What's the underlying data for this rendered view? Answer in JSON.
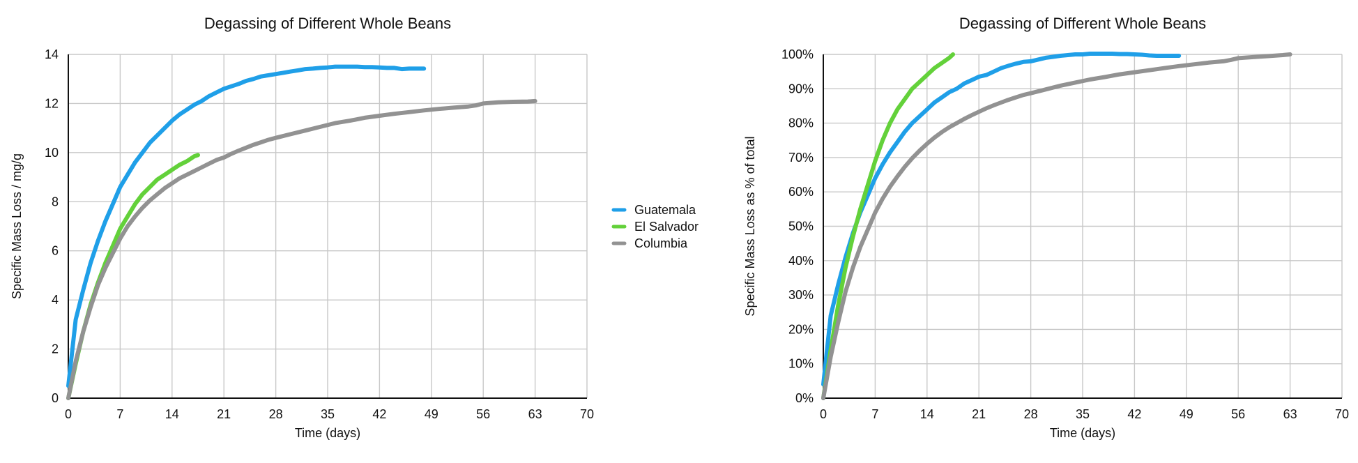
{
  "chart_data": [
    {
      "type": "line",
      "title": "Degassing of Different Whole Beans",
      "xlabel": "Time (days)",
      "ylabel": "Specific Mass Loss / mg/g",
      "xlim": [
        0,
        70
      ],
      "ylim": [
        0,
        14
      ],
      "xticks": [
        "0",
        "7",
        "14",
        "21",
        "28",
        "35",
        "42",
        "49",
        "56",
        "63",
        "70"
      ],
      "yticks": [
        "0",
        "2",
        "4",
        "6",
        "8",
        "10",
        "12",
        "14"
      ],
      "grid": true,
      "series": [
        {
          "name": "Guatemala",
          "color": "#1f9fe8",
          "x": [
            0,
            1,
            2,
            3,
            4,
            5,
            6,
            7,
            8,
            9,
            10,
            11,
            12,
            13,
            14,
            15,
            16,
            17,
            18,
            19,
            20,
            21,
            22,
            23,
            24,
            25,
            26,
            27,
            28,
            29,
            30,
            31,
            32,
            33,
            34,
            35,
            36,
            37,
            38,
            39,
            40,
            41,
            42,
            43,
            44,
            45,
            46,
            47,
            48
          ],
          "y": [
            0.5,
            3.2,
            4.4,
            5.5,
            6.4,
            7.2,
            7.9,
            8.6,
            9.1,
            9.6,
            10.0,
            10.4,
            10.7,
            11.0,
            11.3,
            11.55,
            11.75,
            11.95,
            12.1,
            12.3,
            12.45,
            12.6,
            12.7,
            12.8,
            12.92,
            13.0,
            13.1,
            13.15,
            13.2,
            13.25,
            13.3,
            13.35,
            13.4,
            13.42,
            13.45,
            13.47,
            13.5,
            13.5,
            13.5,
            13.5,
            13.48,
            13.48,
            13.47,
            13.45,
            13.45,
            13.4,
            13.42,
            13.42,
            13.42
          ]
        },
        {
          "name": "El Salvador",
          "color": "#63d13a",
          "x": [
            0,
            1,
            2,
            3,
            4,
            5,
            6,
            7,
            8,
            9,
            10,
            11,
            12,
            13,
            14,
            15,
            16,
            17,
            17.5
          ],
          "y": [
            0,
            1.4,
            2.7,
            3.8,
            4.7,
            5.5,
            6.2,
            6.9,
            7.4,
            7.9,
            8.3,
            8.6,
            8.9,
            9.1,
            9.3,
            9.5,
            9.65,
            9.85,
            9.9
          ]
        },
        {
          "name": "Columbia",
          "color": "#929292",
          "x": [
            0,
            1,
            2,
            3,
            4,
            5,
            6,
            7,
            8,
            9,
            10,
            11,
            12,
            13,
            14,
            15,
            16,
            17,
            18,
            19,
            20,
            21,
            22,
            23,
            24,
            25,
            26,
            27,
            28,
            30,
            32,
            34,
            36,
            38,
            40,
            42,
            44,
            46,
            48,
            50,
            52,
            54,
            55,
            56,
            58,
            60,
            62,
            63
          ],
          "y": [
            0,
            1.5,
            2.7,
            3.7,
            4.6,
            5.3,
            5.9,
            6.5,
            7.0,
            7.4,
            7.75,
            8.05,
            8.3,
            8.55,
            8.75,
            8.95,
            9.1,
            9.25,
            9.4,
            9.55,
            9.7,
            9.8,
            9.95,
            10.08,
            10.2,
            10.32,
            10.42,
            10.52,
            10.6,
            10.75,
            10.9,
            11.05,
            11.2,
            11.3,
            11.42,
            11.5,
            11.58,
            11.65,
            11.72,
            11.78,
            11.83,
            11.88,
            11.92,
            12.0,
            12.05,
            12.07,
            12.08,
            12.1
          ]
        }
      ]
    },
    {
      "type": "line",
      "title": "Degassing of Different Whole Beans",
      "xlabel": "Time (days)",
      "ylabel": "Specific Mass Loss as % of total",
      "xlim": [
        0,
        70
      ],
      "ylim": [
        0,
        100
      ],
      "xticks": [
        "0",
        "7",
        "14",
        "21",
        "28",
        "35",
        "42",
        "49",
        "56",
        "63",
        "70"
      ],
      "yticks": [
        "0%",
        "10%",
        "20%",
        "30%",
        "40%",
        "50%",
        "60%",
        "70%",
        "80%",
        "90%",
        "100%"
      ],
      "grid": true,
      "series": [
        {
          "name": "Guatemala",
          "color": "#1f9fe8",
          "x": [
            0,
            1,
            2,
            3,
            4,
            5,
            6,
            7,
            8,
            9,
            10,
            11,
            12,
            13,
            14,
            15,
            16,
            17,
            18,
            19,
            20,
            21,
            22,
            23,
            24,
            25,
            26,
            27,
            28,
            29,
            30,
            31,
            32,
            33,
            34,
            35,
            36,
            37,
            38,
            39,
            40,
            41,
            42,
            43,
            44,
            45,
            46,
            47,
            48
          ],
          "y": [
            4,
            24,
            33,
            41,
            48,
            54,
            59,
            64,
            68,
            71.5,
            74.5,
            77.5,
            80,
            82,
            84,
            86,
            87.5,
            89,
            90,
            91.5,
            92.5,
            93.5,
            94,
            95,
            96,
            96.7,
            97.3,
            97.8,
            98,
            98.5,
            99,
            99.3,
            99.6,
            99.8,
            100,
            100,
            100.2,
            100.2,
            100.2,
            100.2,
            100.1,
            100.1,
            100,
            99.9,
            99.7,
            99.6,
            99.6,
            99.6,
            99.6
          ]
        },
        {
          "name": "El Salvador",
          "color": "#63d13a",
          "x": [
            0,
            1,
            2,
            3,
            4,
            5,
            6,
            7,
            8,
            9,
            10,
            11,
            12,
            13,
            14,
            15,
            16,
            17,
            17.5
          ],
          "y": [
            0,
            14,
            27,
            38,
            47,
            55,
            62,
            69,
            75,
            80,
            84,
            87,
            90,
            92,
            94,
            96,
            97.5,
            99,
            100
          ]
        },
        {
          "name": "Columbia",
          "color": "#929292",
          "x": [
            0,
            1,
            2,
            3,
            4,
            5,
            6,
            7,
            8,
            9,
            10,
            11,
            12,
            13,
            14,
            15,
            16,
            17,
            18,
            19,
            20,
            21,
            22,
            23,
            24,
            25,
            26,
            27,
            28,
            30,
            32,
            34,
            36,
            38,
            40,
            42,
            44,
            46,
            48,
            50,
            52,
            54,
            55,
            56,
            58,
            60,
            62,
            63
          ],
          "y": [
            0,
            12,
            22,
            31,
            38,
            44,
            49,
            54,
            58,
            61.5,
            64.5,
            67.3,
            69.8,
            72,
            74,
            75.8,
            77.4,
            78.8,
            80,
            81.2,
            82.3,
            83.3,
            84.3,
            85.2,
            86,
            86.8,
            87.5,
            88.2,
            88.7,
            89.8,
            90.9,
            91.8,
            92.7,
            93.4,
            94.2,
            94.8,
            95.4,
            96,
            96.6,
            97.1,
            97.6,
            98,
            98.4,
            98.9,
            99.2,
            99.5,
            99.8,
            100
          ]
        }
      ]
    }
  ],
  "legend": {
    "items": [
      {
        "label": "Guatemala",
        "color": "#1f9fe8"
      },
      {
        "label": "El Salvador",
        "color": "#63d13a"
      },
      {
        "label": "Columbia",
        "color": "#929292"
      }
    ]
  }
}
